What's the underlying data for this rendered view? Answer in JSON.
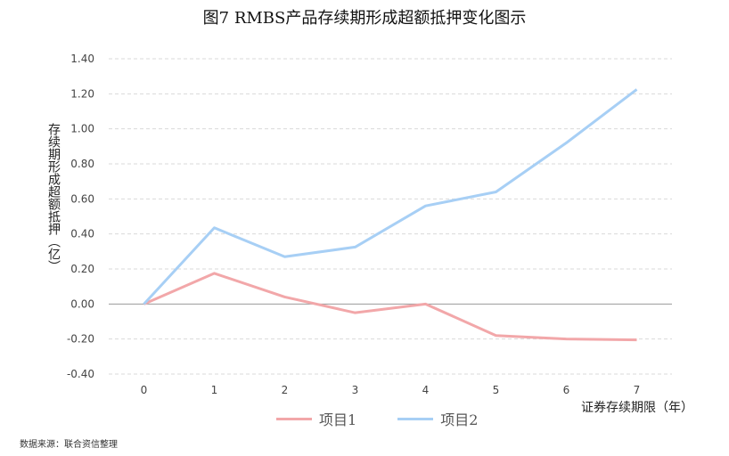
{
  "chart_data": {
    "type": "line",
    "title": "图7  RMBS产品存续期形成超额抵押变化图示",
    "xlabel": "证券存续期限（年）",
    "ylabel": "存续期形成超额抵押（亿）",
    "x": [
      0,
      1,
      2,
      3,
      4,
      5,
      6,
      7
    ],
    "x_tick_labels": [
      "0",
      "1",
      "2",
      "3",
      "4",
      "5",
      "6",
      "7"
    ],
    "ylim": [
      -0.4,
      1.4
    ],
    "y_tick_labels": [
      "-0.40",
      "-0.20",
      "0.00",
      "0.20",
      "0.40",
      "0.60",
      "0.80",
      "1.00",
      "1.20",
      "1.40"
    ],
    "grid": true,
    "legend_position": "bottom",
    "series": [
      {
        "name": "项目1",
        "color": "#f2a7a9",
        "values": [
          0.0,
          0.175,
          0.04,
          -0.05,
          0.0,
          -0.18,
          -0.2,
          -0.205
        ]
      },
      {
        "name": "项目2",
        "color": "#a7cff5",
        "values": [
          0.0,
          0.435,
          0.27,
          0.325,
          0.56,
          0.64,
          0.92,
          1.225
        ]
      }
    ]
  },
  "source": "数据来源：联合资信整理"
}
